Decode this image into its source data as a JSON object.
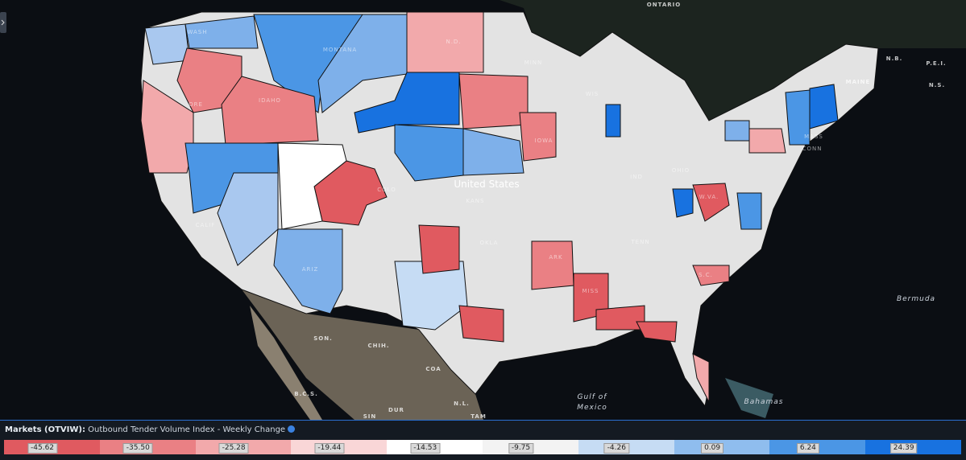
{
  "map": {
    "labels": [
      "ONTARIO",
      "N.B.",
      "P.E.I.",
      "N.S.",
      "MAINE",
      "WASH",
      "MONTANA",
      "IDAHO",
      "ORE",
      "N.D.",
      "MINN",
      "WIS",
      "IOWA",
      "United States",
      "KANS",
      "COLO",
      "OKLA",
      "ARK",
      "MISS",
      "TENN",
      "W.VA.",
      "S.C.",
      "ARIZ",
      "CALIF",
      "IND",
      "OHIO",
      "MASS",
      "CONN",
      "SON.",
      "CHIH.",
      "COA",
      "N.L.",
      "TAM",
      "DUR",
      "SIN",
      "B.C.S."
    ],
    "water_labels": [
      "Bermuda",
      "Gulf of",
      "Mexico",
      "Bahamas"
    ]
  },
  "legend": {
    "title_bold": "Markets (OTVIW):",
    "title": "Outbound Tender Volume Index - Weekly Change",
    "bins": [
      {
        "label": "-45.62",
        "color": "#e05a60"
      },
      {
        "label": "-35.50",
        "color": "#ea8084"
      },
      {
        "label": "-25.28",
        "color": "#f2a9ab"
      },
      {
        "label": "-19.44",
        "color": "#f9d6d7"
      },
      {
        "label": "-14.53",
        "color": "#ffffff"
      },
      {
        "label": "-9.75",
        "color": "#f3f3f3"
      },
      {
        "label": "-4.26",
        "color": "#c6dcf4"
      },
      {
        "label": "0.09",
        "color": "#8fbdee"
      },
      {
        "label": "6.24",
        "color": "#4b96e5"
      },
      {
        "label": "24.39",
        "color": "#1872e0"
      }
    ]
  }
}
